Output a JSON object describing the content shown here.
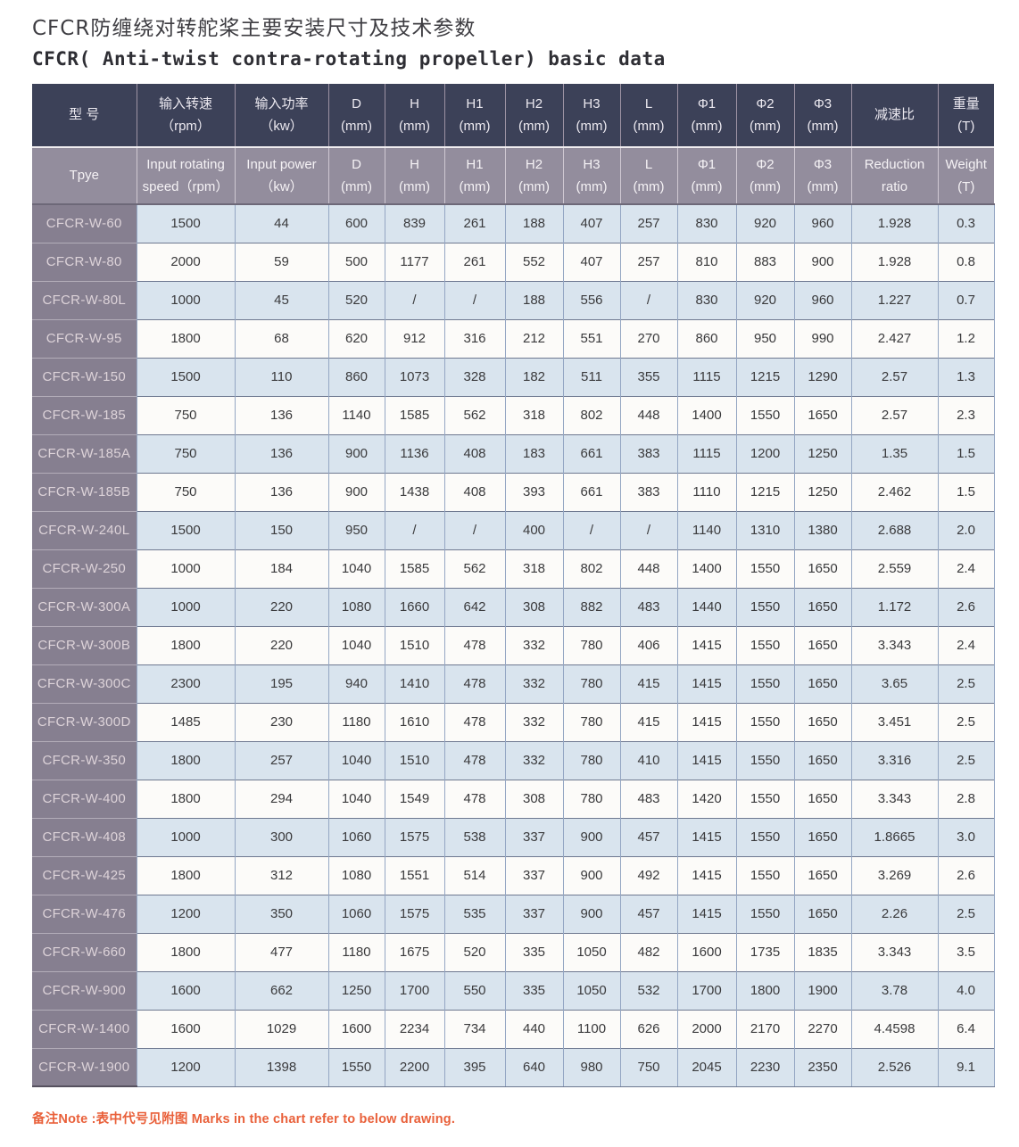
{
  "page": {
    "title_cn": "CFCR防缠绕对转舵桨主要安装尺寸及技术参数",
    "title_en": "CFCR( Anti-twist contra-rotating propeller) basic data",
    "note": "备注Note :表中代号见附图 Marks in the chart refer to below drawing."
  },
  "colors": {
    "header_dark": "#3c4158",
    "header_mauve": "#938d9d",
    "model_column": "#867f90",
    "row_blue": "#d9e4ee",
    "row_white": "#fcfbf9",
    "note_orange": "#e9603a"
  },
  "table": {
    "header_cn": [
      [
        "型 号"
      ],
      [
        "输入转速",
        "（rpm）"
      ],
      [
        "输入功率",
        "（kw）"
      ],
      [
        "D",
        "(mm)"
      ],
      [
        "H",
        "(mm)"
      ],
      [
        "H1",
        "(mm)"
      ],
      [
        "H2",
        "(mm)"
      ],
      [
        "H3",
        "(mm)"
      ],
      [
        "L",
        "(mm)"
      ],
      [
        "Φ1",
        "(mm)"
      ],
      [
        "Φ2",
        "(mm)"
      ],
      [
        "Φ3",
        "(mm)"
      ],
      [
        "减速比"
      ],
      [
        "重量",
        "(T)"
      ]
    ],
    "header_en": [
      [
        "Tpye"
      ],
      [
        "Input rotating",
        "speed（rpm）"
      ],
      [
        "Input power",
        "（kw）"
      ],
      [
        "D",
        "(mm)"
      ],
      [
        "H",
        "(mm)"
      ],
      [
        "H1",
        "(mm)"
      ],
      [
        "H2",
        "(mm)"
      ],
      [
        "H3",
        "(mm)"
      ],
      [
        "L",
        "(mm)"
      ],
      [
        "Φ1",
        "(mm)"
      ],
      [
        "Φ2",
        "(mm)"
      ],
      [
        "Φ3",
        "(mm)"
      ],
      [
        "Reduction",
        "ratio"
      ],
      [
        "Weight",
        "(T)"
      ]
    ],
    "rows": [
      {
        "model": "CFCR-W-60",
        "values": [
          "1500",
          "44",
          "600",
          "839",
          "261",
          "188",
          "407",
          "257",
          "830",
          "920",
          "960",
          "1.928",
          "0.3"
        ]
      },
      {
        "model": "CFCR-W-80",
        "values": [
          "2000",
          "59",
          "500",
          "1177",
          "261",
          "552",
          "407",
          "257",
          "810",
          "883",
          "900",
          "1.928",
          "0.8"
        ]
      },
      {
        "model": "CFCR-W-80L",
        "values": [
          "1000",
          "45",
          "520",
          "/",
          "/",
          "188",
          "556",
          "/",
          "830",
          "920",
          "960",
          "1.227",
          "0.7"
        ]
      },
      {
        "model": "CFCR-W-95",
        "values": [
          "1800",
          "68",
          "620",
          "912",
          "316",
          "212",
          "551",
          "270",
          "860",
          "950",
          "990",
          "2.427",
          "1.2"
        ]
      },
      {
        "model": "CFCR-W-150",
        "values": [
          "1500",
          "110",
          "860",
          "1073",
          "328",
          "182",
          "511",
          "355",
          "1115",
          "1215",
          "1290",
          "2.57",
          "1.3"
        ]
      },
      {
        "model": "CFCR-W-185",
        "values": [
          "750",
          "136",
          "1140",
          "1585",
          "562",
          "318",
          "802",
          "448",
          "1400",
          "1550",
          "1650",
          "2.57",
          "2.3"
        ]
      },
      {
        "model": "CFCR-W-185A",
        "values": [
          "750",
          "136",
          "900",
          "1136",
          "408",
          "183",
          "661",
          "383",
          "1115",
          "1200",
          "1250",
          "1.35",
          "1.5"
        ]
      },
      {
        "model": "CFCR-W-185B",
        "values": [
          "750",
          "136",
          "900",
          "1438",
          "408",
          "393",
          "661",
          "383",
          "1110",
          "1215",
          "1250",
          "2.462",
          "1.5"
        ]
      },
      {
        "model": "CFCR-W-240L",
        "values": [
          "1500",
          "150",
          "950",
          "/",
          "/",
          "400",
          "/",
          "/",
          "1140",
          "1310",
          "1380",
          "2.688",
          "2.0"
        ]
      },
      {
        "model": "CFCR-W-250",
        "values": [
          "1000",
          "184",
          "1040",
          "1585",
          "562",
          "318",
          "802",
          "448",
          "1400",
          "1550",
          "1650",
          "2.559",
          "2.4"
        ]
      },
      {
        "model": "CFCR-W-300A",
        "values": [
          "1000",
          "220",
          "1080",
          "1660",
          "642",
          "308",
          "882",
          "483",
          "1440",
          "1550",
          "1650",
          "1.172",
          "2.6"
        ]
      },
      {
        "model": "CFCR-W-300B",
        "values": [
          "1800",
          "220",
          "1040",
          "1510",
          "478",
          "332",
          "780",
          "406",
          "1415",
          "1550",
          "1650",
          "3.343",
          "2.4"
        ]
      },
      {
        "model": "CFCR-W-300C",
        "values": [
          "2300",
          "195",
          "940",
          "1410",
          "478",
          "332",
          "780",
          "415",
          "1415",
          "1550",
          "1650",
          "3.65",
          "2.5"
        ]
      },
      {
        "model": "CFCR-W-300D",
        "values": [
          "1485",
          "230",
          "1180",
          "1610",
          "478",
          "332",
          "780",
          "415",
          "1415",
          "1550",
          "1650",
          "3.451",
          "2.5"
        ]
      },
      {
        "model": "CFCR-W-350",
        "values": [
          "1800",
          "257",
          "1040",
          "1510",
          "478",
          "332",
          "780",
          "410",
          "1415",
          "1550",
          "1650",
          "3.316",
          "2.5"
        ]
      },
      {
        "model": "CFCR-W-400",
        "values": [
          "1800",
          "294",
          "1040",
          "1549",
          "478",
          "308",
          "780",
          "483",
          "1420",
          "1550",
          "1650",
          "3.343",
          "2.8"
        ]
      },
      {
        "model": "CFCR-W-408",
        "values": [
          "1000",
          "300",
          "1060",
          "1575",
          "538",
          "337",
          "900",
          "457",
          "1415",
          "1550",
          "1650",
          "1.8665",
          "3.0"
        ]
      },
      {
        "model": "CFCR-W-425",
        "values": [
          "1800",
          "312",
          "1080",
          "1551",
          "514",
          "337",
          "900",
          "492",
          "1415",
          "1550",
          "1650",
          "3.269",
          "2.6"
        ]
      },
      {
        "model": "CFCR-W-476",
        "values": [
          "1200",
          "350",
          "1060",
          "1575",
          "535",
          "337",
          "900",
          "457",
          "1415",
          "1550",
          "1650",
          "2.26",
          "2.5"
        ]
      },
      {
        "model": "CFCR-W-660",
        "values": [
          "1800",
          "477",
          "1180",
          "1675",
          "520",
          "335",
          "1050",
          "482",
          "1600",
          "1735",
          "1835",
          "3.343",
          "3.5"
        ]
      },
      {
        "model": "CFCR-W-900",
        "values": [
          "1600",
          "662",
          "1250",
          "1700",
          "550",
          "335",
          "1050",
          "532",
          "1700",
          "1800",
          "1900",
          "3.78",
          "4.0"
        ]
      },
      {
        "model": "CFCR-W-1400",
        "values": [
          "1600",
          "1029",
          "1600",
          "2234",
          "734",
          "440",
          "1100",
          "626",
          "2000",
          "2170",
          "2270",
          "4.4598",
          "6.4"
        ]
      },
      {
        "model": "CFCR-W-1900",
        "values": [
          "1200",
          "1398",
          "1550",
          "2200",
          "395",
          "640",
          "980",
          "750",
          "2045",
          "2230",
          "2350",
          "2.526",
          "9.1"
        ]
      }
    ]
  }
}
